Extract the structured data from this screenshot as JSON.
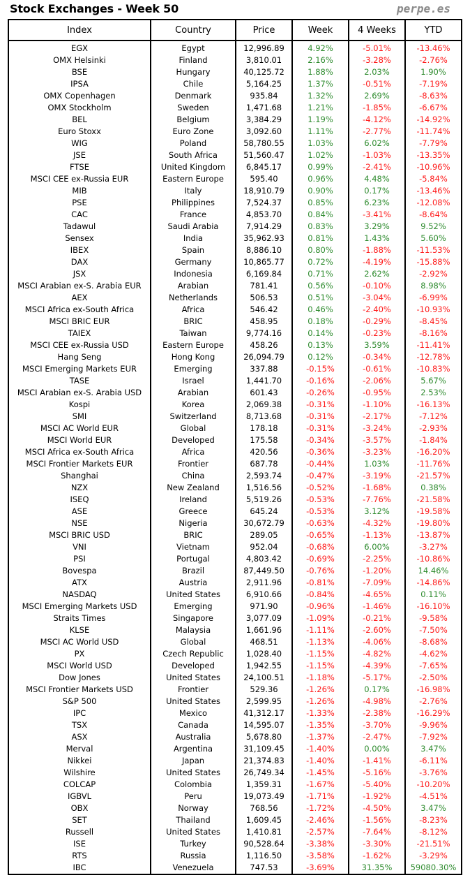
{
  "title": "Stock Exchanges - Week 50",
  "brand": "perpe.es",
  "colors": {
    "positive": "#2e8b2e",
    "negative": "#ff1a1a"
  },
  "headers": [
    "Index",
    "Country",
    "Price",
    "Week",
    "4 Weeks",
    "YTD"
  ],
  "rows": [
    [
      "EGX",
      "Egypt",
      "12,996.89",
      "4.92%",
      "-5.01%",
      "-13.46%"
    ],
    [
      "OMX Helsinki",
      "Finland",
      "3,810.01",
      "2.16%",
      "-3.28%",
      "-2.76%"
    ],
    [
      "BSE",
      "Hungary",
      "40,125.72",
      "1.88%",
      "2.03%",
      "1.90%"
    ],
    [
      "IPSA",
      "Chile",
      "5,164.25",
      "1.37%",
      "-0.51%",
      "-7.19%"
    ],
    [
      "OMX Copenhagen",
      "Denmark",
      "935.84",
      "1.32%",
      "2.69%",
      "-8.63%"
    ],
    [
      "OMX Stockholm",
      "Sweden",
      "1,471.68",
      "1.21%",
      "-1.85%",
      "-6.67%"
    ],
    [
      "BEL",
      "Belgium",
      "3,384.29",
      "1.19%",
      "-4.12%",
      "-14.92%"
    ],
    [
      "Euro Stoxx",
      "Euro Zone",
      "3,092.60",
      "1.11%",
      "-2.77%",
      "-11.74%"
    ],
    [
      "WIG",
      "Poland",
      "58,780.55",
      "1.03%",
      "6.02%",
      "-7.79%"
    ],
    [
      "JSE",
      "South Africa",
      "51,560.47",
      "1.02%",
      "-1.03%",
      "-13.35%"
    ],
    [
      "FTSE",
      "United Kingdom",
      "6,845.17",
      "0.99%",
      "-2.41%",
      "-10.96%"
    ],
    [
      "MSCI CEE ex-Russia EUR",
      "Eastern Europe",
      "595.40",
      "0.96%",
      "4.48%",
      "-5.84%"
    ],
    [
      "MIB",
      "Italy",
      "18,910.79",
      "0.90%",
      "0.17%",
      "-13.46%"
    ],
    [
      "PSE",
      "Philippines",
      "7,524.37",
      "0.85%",
      "6.23%",
      "-12.08%"
    ],
    [
      "CAC",
      "France",
      "4,853.70",
      "0.84%",
      "-3.41%",
      "-8.64%"
    ],
    [
      "Tadawul",
      "Saudi Arabia",
      "7,914.29",
      "0.83%",
      "3.29%",
      "9.52%"
    ],
    [
      "Sensex",
      "India",
      "35,962.93",
      "0.81%",
      "1.43%",
      "5.60%"
    ],
    [
      "IBEX",
      "Spain",
      "8,886.10",
      "0.80%",
      "-1.88%",
      "-11.53%"
    ],
    [
      "DAX",
      "Germany",
      "10,865.77",
      "0.72%",
      "-4.19%",
      "-15.88%"
    ],
    [
      "JSX",
      "Indonesia",
      "6,169.84",
      "0.71%",
      "2.62%",
      "-2.92%"
    ],
    [
      "MSCI Arabian ex-S. Arabia EUR",
      "Arabian",
      "781.41",
      "0.56%",
      "-0.10%",
      "8.98%"
    ],
    [
      "AEX",
      "Netherlands",
      "506.53",
      "0.51%",
      "-3.04%",
      "-6.99%"
    ],
    [
      "MSCI Africa ex-South Africa",
      "Africa",
      "546.42",
      "0.46%",
      "-2.40%",
      "-10.93%"
    ],
    [
      "MSCI BRIC EUR",
      "BRIC",
      "458.95",
      "0.18%",
      "-0.29%",
      "-8.45%"
    ],
    [
      "TAIEX",
      "Taiwan",
      "9,774.16",
      "0.14%",
      "-0.23%",
      "-8.16%"
    ],
    [
      "MSCI CEE ex-Russia USD",
      "Eastern Europe",
      "458.26",
      "0.13%",
      "3.59%",
      "-11.41%"
    ],
    [
      "Hang Seng",
      "Hong Kong",
      "26,094.79",
      "0.12%",
      "-0.34%",
      "-12.78%"
    ],
    [
      "MSCI Emerging Markets EUR",
      "Emerging",
      "337.88",
      "-0.15%",
      "-0.61%",
      "-10.83%"
    ],
    [
      "TASE",
      "Israel",
      "1,441.70",
      "-0.16%",
      "-2.06%",
      "5.67%"
    ],
    [
      "MSCI Arabian ex-S. Arabia USD",
      "Arabian",
      "601.43",
      "-0.26%",
      "-0.95%",
      "2.53%"
    ],
    [
      "Kospi",
      "Korea",
      "2,069.38",
      "-0.31%",
      "-1.10%",
      "-16.13%"
    ],
    [
      "SMI",
      "Switzerland",
      "8,713.68",
      "-0.31%",
      "-2.17%",
      "-7.12%"
    ],
    [
      "MSCI AC World EUR",
      "Global",
      "178.18",
      "-0.31%",
      "-3.24%",
      "-2.93%"
    ],
    [
      "MSCI World EUR",
      "Developed",
      "175.58",
      "-0.34%",
      "-3.57%",
      "-1.84%"
    ],
    [
      "MSCI Africa ex-South Africa",
      "Africa",
      "420.56",
      "-0.36%",
      "-3.23%",
      "-16.20%"
    ],
    [
      "MSCI Frontier Markets EUR",
      "Frontier",
      "687.78",
      "-0.44%",
      "1.03%",
      "-11.76%"
    ],
    [
      "Shanghai",
      "China",
      "2,593.74",
      "-0.47%",
      "-3.19%",
      "-21.57%"
    ],
    [
      "NZX",
      "New Zealand",
      "1,516.56",
      "-0.52%",
      "-1.68%",
      "0.38%"
    ],
    [
      "ISEQ",
      "Ireland",
      "5,519.26",
      "-0.53%",
      "-7.76%",
      "-21.58%"
    ],
    [
      "ASE",
      "Greece",
      "645.24",
      "-0.53%",
      "3.12%",
      "-19.58%"
    ],
    [
      "NSE",
      "Nigeria",
      "30,672.79",
      "-0.63%",
      "-4.32%",
      "-19.80%"
    ],
    [
      "MSCI BRIC USD",
      "BRIC",
      "289.05",
      "-0.65%",
      "-1.13%",
      "-13.87%"
    ],
    [
      "VNI",
      "Vietnam",
      "952.04",
      "-0.68%",
      "6.00%",
      "-3.27%"
    ],
    [
      "PSI",
      "Portugal",
      "4,803.42",
      "-0.69%",
      "-2.25%",
      "-10.86%"
    ],
    [
      "Bovespa",
      "Brazil",
      "87,449.50",
      "-0.76%",
      "-1.20%",
      "14.46%"
    ],
    [
      "ATX",
      "Austria",
      "2,911.96",
      "-0.81%",
      "-7.09%",
      "-14.86%"
    ],
    [
      "NASDAQ",
      "United States",
      "6,910.66",
      "-0.84%",
      "-4.65%",
      "0.11%"
    ],
    [
      "MSCI Emerging Markets USD",
      "Emerging",
      "971.90",
      "-0.96%",
      "-1.46%",
      "-16.10%"
    ],
    [
      "Straits Times",
      "Singapore",
      "3,077.09",
      "-1.09%",
      "-0.21%",
      "-9.58%"
    ],
    [
      "KLSE",
      "Malaysia",
      "1,661.96",
      "-1.11%",
      "-2.60%",
      "-7.50%"
    ],
    [
      "MSCI AC World USD",
      "Global",
      "468.51",
      "-1.13%",
      "-4.06%",
      "-8.68%"
    ],
    [
      "PX",
      "Czech Republic",
      "1,028.40",
      "-1.15%",
      "-4.82%",
      "-4.62%"
    ],
    [
      "MSCI World USD",
      "Developed",
      "1,942.55",
      "-1.15%",
      "-4.39%",
      "-7.65%"
    ],
    [
      "Dow Jones",
      "United States",
      "24,100.51",
      "-1.18%",
      "-5.17%",
      "-2.50%"
    ],
    [
      "MSCI Frontier Markets USD",
      "Frontier",
      "529.36",
      "-1.26%",
      "0.17%",
      "-16.98%"
    ],
    [
      "S&P 500",
      "United States",
      "2,599.95",
      "-1.26%",
      "-4.98%",
      "-2.76%"
    ],
    [
      "IPC",
      "Mexico",
      "41,312.17",
      "-1.33%",
      "-2.38%",
      "-16.29%"
    ],
    [
      "TSX",
      "Canada",
      "14,595.07",
      "-1.35%",
      "-3.70%",
      "-9.96%"
    ],
    [
      "ASX",
      "Australia",
      "5,678.80",
      "-1.37%",
      "-2.47%",
      "-7.92%"
    ],
    [
      "Merval",
      "Argentina",
      "31,109.45",
      "-1.40%",
      "0.00%",
      "3.47%"
    ],
    [
      "Nikkei",
      "Japan",
      "21,374.83",
      "-1.40%",
      "-1.41%",
      "-6.11%"
    ],
    [
      "Wilshire",
      "United States",
      "26,749.34",
      "-1.45%",
      "-5.16%",
      "-3.76%"
    ],
    [
      "COLCAP",
      "Colombia",
      "1,359.31",
      "-1.67%",
      "-5.40%",
      "-10.20%"
    ],
    [
      "IGBVL",
      "Peru",
      "19,073.49",
      "-1.71%",
      "-1.92%",
      "-4.51%"
    ],
    [
      "OBX",
      "Norway",
      "768.56",
      "-1.72%",
      "-4.50%",
      "3.47%"
    ],
    [
      "SET",
      "Thailand",
      "1,609.45",
      "-2.46%",
      "-1.56%",
      "-8.23%"
    ],
    [
      "Russell",
      "United States",
      "1,410.81",
      "-2.57%",
      "-7.64%",
      "-8.12%"
    ],
    [
      "ISE",
      "Turkey",
      "90,528.64",
      "-3.38%",
      "-3.30%",
      "-21.51%"
    ],
    [
      "RTS",
      "Russia",
      "1,116.50",
      "-3.58%",
      "-1.62%",
      "-3.29%"
    ],
    [
      "IBC",
      "Venezuela",
      "747.53",
      "-3.69%",
      "31.35%",
      "59080.30%"
    ]
  ]
}
